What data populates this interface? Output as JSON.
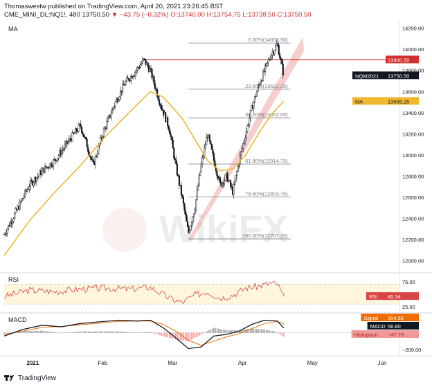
{
  "header": {
    "line1": "Thomaswestw published on TradingView.com, April 20, 2021 23:26:45 BST",
    "symbol": "CME_MINI_DL:NQ1!, 480",
    "last": "13750.50",
    "change": "▼ −43.75 (−0.32%)",
    "ohlc": "O:13740.00 H:13754.75 L:13738.50 C:13750.50"
  },
  "footer": {
    "brand": "TradingView"
  },
  "watermark": "WikiFX",
  "colors": {
    "candle": "#131722",
    "ma": "#f0b72f",
    "resistance": "#d32f2f",
    "trend_band": "rgba(229,115,115,0.35)",
    "fib": "#787b86",
    "rsi": "#d84343",
    "macd": "#131722",
    "signal": "#ef6c00",
    "hist_pos": "#9e9e9e",
    "hist_neg": "#ef9a9a"
  },
  "chart_data": [
    {
      "type": "candlestick",
      "title": "MA",
      "x_axis_labels": [
        "2021",
        "Feb",
        "Mar",
        "Apr",
        "May",
        "Jun"
      ],
      "y_ticks": [
        12000,
        12200,
        12400,
        12600,
        12800,
        13000,
        13200,
        13400,
        13600,
        13800,
        14000,
        14200
      ],
      "ylim": [
        11900,
        14250
      ],
      "close_path": [
        {
          "t": 0,
          "v": 12250
        },
        {
          "t": 4,
          "v": 12480
        },
        {
          "t": 8,
          "v": 12720
        },
        {
          "t": 12,
          "v": 12850
        },
        {
          "t": 16,
          "v": 12950
        },
        {
          "t": 20,
          "v": 13120
        },
        {
          "t": 24,
          "v": 13280
        },
        {
          "t": 26,
          "v": 13100
        },
        {
          "t": 28,
          "v": 12900
        },
        {
          "t": 31,
          "v": 13200
        },
        {
          "t": 35,
          "v": 13500
        },
        {
          "t": 38,
          "v": 13680
        },
        {
          "t": 41,
          "v": 13780
        },
        {
          "t": 44,
          "v": 13900
        },
        {
          "t": 46,
          "v": 13800
        },
        {
          "t": 49,
          "v": 13500
        },
        {
          "t": 52,
          "v": 13250
        },
        {
          "t": 54,
          "v": 12900
        },
        {
          "t": 56,
          "v": 12600
        },
        {
          "t": 58,
          "v": 12260
        },
        {
          "t": 60,
          "v": 12500
        },
        {
          "t": 62,
          "v": 12900
        },
        {
          "t": 64,
          "v": 13200
        },
        {
          "t": 66,
          "v": 12950
        },
        {
          "t": 68,
          "v": 12720
        },
        {
          "t": 70,
          "v": 12800
        },
        {
          "t": 72,
          "v": 12650
        },
        {
          "t": 74,
          "v": 12950
        },
        {
          "t": 76,
          "v": 13200
        },
        {
          "t": 78,
          "v": 13450
        },
        {
          "t": 80,
          "v": 13650
        },
        {
          "t": 82,
          "v": 13800
        },
        {
          "t": 84,
          "v": 13950
        },
        {
          "t": 86,
          "v": 14050
        },
        {
          "t": 87,
          "v": 13900
        },
        {
          "t": 88,
          "v": 13750
        }
      ],
      "ma_path": [
        {
          "t": 0,
          "v": 12050
        },
        {
          "t": 8,
          "v": 12380
        },
        {
          "t": 16,
          "v": 12650
        },
        {
          "t": 24,
          "v": 12900
        },
        {
          "t": 32,
          "v": 13180
        },
        {
          "t": 40,
          "v": 13420
        },
        {
          "t": 46,
          "v": 13600
        },
        {
          "t": 50,
          "v": 13550
        },
        {
          "t": 56,
          "v": 13350
        },
        {
          "t": 60,
          "v": 13150
        },
        {
          "t": 64,
          "v": 12950
        },
        {
          "t": 68,
          "v": 12850
        },
        {
          "t": 72,
          "v": 12870
        },
        {
          "t": 76,
          "v": 13000
        },
        {
          "t": 80,
          "v": 13200
        },
        {
          "t": 84,
          "v": 13380
        },
        {
          "t": 88,
          "v": 13508
        }
      ],
      "resistance": {
        "value": 13900.5,
        "label": "13900.50",
        "from_t": 44,
        "to_t": 94
      },
      "trend_channel": {
        "from_t": 58,
        "from_v": 12207,
        "to_t": 94,
        "to_v": 14050
      },
      "fib_levels": [
        {
          "label": "0.00%(14059.50)",
          "value": 14059.5
        },
        {
          "label": "23.60%(13622.25)",
          "value": 13622.25
        },
        {
          "label": "38.20%(13352.00)",
          "value": 13352.0
        },
        {
          "label": "61.80%(12914.75)",
          "value": 12914.75
        },
        {
          "label": "78.60%(12603.75)",
          "value": 12603.75
        },
        {
          "label": "100.00%(12207.25)",
          "value": 12207.25
        }
      ],
      "fib_from_t": 58,
      "fib_to_t": 88,
      "badges": [
        {
          "label": "13900.50",
          "value": 13900.5,
          "color": "#d32f2f",
          "text_color": "#ffffff"
        },
        {
          "label": "NQM2021 · 13750.50",
          "value": 13750.5,
          "color": "#131722",
          "text_color": "#ffffff"
        },
        {
          "label": "MA · 13508.25",
          "value": 13508.25,
          "color": "#f0b72f",
          "text_color": "#131722"
        }
      ]
    },
    {
      "type": "line",
      "title": "RSI",
      "y_ticks": [
        25,
        75
      ],
      "ylim": [
        15,
        90
      ],
      "band": [
        30,
        70
      ],
      "badge": {
        "label": "RSI · 45.34",
        "value": 45.34
      },
      "path": [
        {
          "t": 0,
          "v": 45
        },
        {
          "t": 8,
          "v": 58
        },
        {
          "t": 16,
          "v": 55
        },
        {
          "t": 24,
          "v": 60
        },
        {
          "t": 32,
          "v": 62
        },
        {
          "t": 40,
          "v": 60
        },
        {
          "t": 46,
          "v": 64
        },
        {
          "t": 52,
          "v": 42
        },
        {
          "t": 56,
          "v": 33
        },
        {
          "t": 60,
          "v": 48
        },
        {
          "t": 64,
          "v": 55
        },
        {
          "t": 68,
          "v": 42
        },
        {
          "t": 72,
          "v": 48
        },
        {
          "t": 76,
          "v": 62
        },
        {
          "t": 80,
          "v": 66
        },
        {
          "t": 84,
          "v": 72
        },
        {
          "t": 86,
          "v": 70
        },
        {
          "t": 88,
          "v": 45
        }
      ]
    },
    {
      "type": "macd",
      "title": "MACD",
      "y_ticks": [
        -200
      ],
      "ylim": [
        -260,
        220
      ],
      "badges": [
        {
          "label": "Signal · 104.58",
          "value": 104.58,
          "color": "#ef6c00"
        },
        {
          "label": "MACD · 56.80",
          "value": 56.8,
          "color": "#131722"
        },
        {
          "label": "Histogram · −47.78",
          "value": -47.78,
          "color": "#ef9a9a"
        }
      ],
      "macd_path": [
        {
          "t": 0,
          "v": -40
        },
        {
          "t": 6,
          "v": 40
        },
        {
          "t": 12,
          "v": 90
        },
        {
          "t": 18,
          "v": 70
        },
        {
          "t": 24,
          "v": 110
        },
        {
          "t": 30,
          "v": 130
        },
        {
          "t": 36,
          "v": 150
        },
        {
          "t": 42,
          "v": 140
        },
        {
          "t": 46,
          "v": 150
        },
        {
          "t": 50,
          "v": 60
        },
        {
          "t": 54,
          "v": -60
        },
        {
          "t": 58,
          "v": -190
        },
        {
          "t": 62,
          "v": -170
        },
        {
          "t": 66,
          "v": -40
        },
        {
          "t": 70,
          "v": -20
        },
        {
          "t": 74,
          "v": 20
        },
        {
          "t": 78,
          "v": 100
        },
        {
          "t": 82,
          "v": 150
        },
        {
          "t": 86,
          "v": 140
        },
        {
          "t": 88,
          "v": 57
        }
      ],
      "signal_path": [
        {
          "t": 0,
          "v": -20
        },
        {
          "t": 6,
          "v": 20
        },
        {
          "t": 12,
          "v": 65
        },
        {
          "t": 18,
          "v": 75
        },
        {
          "t": 24,
          "v": 95
        },
        {
          "t": 30,
          "v": 115
        },
        {
          "t": 36,
          "v": 135
        },
        {
          "t": 42,
          "v": 140
        },
        {
          "t": 46,
          "v": 140
        },
        {
          "t": 50,
          "v": 100
        },
        {
          "t": 54,
          "v": 20
        },
        {
          "t": 58,
          "v": -90
        },
        {
          "t": 62,
          "v": -150
        },
        {
          "t": 66,
          "v": -100
        },
        {
          "t": 70,
          "v": -50
        },
        {
          "t": 74,
          "v": -10
        },
        {
          "t": 78,
          "v": 50
        },
        {
          "t": 82,
          "v": 110
        },
        {
          "t": 86,
          "v": 135
        },
        {
          "t": 88,
          "v": 105
        }
      ]
    }
  ],
  "x_axis": {
    "labels": [
      {
        "text": "2021",
        "t": 9
      },
      {
        "text": "Feb",
        "t": 31
      },
      {
        "text": "Mar",
        "t": 53
      },
      {
        "text": "Apr",
        "t": 75
      },
      {
        "text": "May",
        "t": 97
      },
      {
        "text": "Jun",
        "t": 119
      }
    ],
    "t_range": [
      0,
      124
    ]
  }
}
